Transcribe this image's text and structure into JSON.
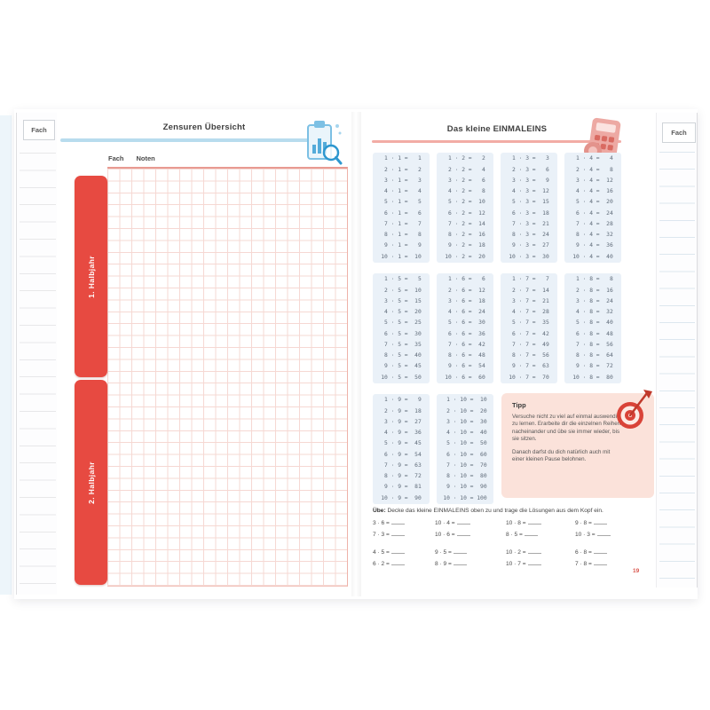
{
  "book": {
    "left_edge_tab": "Fach",
    "right_edge_tab": "Fach"
  },
  "left_page": {
    "title": "Zensuren Übersicht",
    "column_headers": {
      "fach": "Fach",
      "noten": "Noten"
    },
    "semester_tabs": [
      {
        "label": "1. Halbjahr"
      },
      {
        "label": "2. Halbjahr"
      }
    ]
  },
  "right_page": {
    "title": "Das kleine EINMALEINS",
    "page_number": "19",
    "multiplication_sign": "·",
    "tables": [
      {
        "k": 1,
        "products": [
          1,
          2,
          3,
          4,
          5,
          6,
          7,
          8,
          9,
          10
        ]
      },
      {
        "k": 2,
        "products": [
          2,
          4,
          6,
          8,
          10,
          12,
          14,
          16,
          18,
          20
        ]
      },
      {
        "k": 3,
        "products": [
          3,
          6,
          9,
          12,
          15,
          18,
          21,
          24,
          27,
          30
        ]
      },
      {
        "k": 4,
        "products": [
          4,
          8,
          12,
          16,
          20,
          24,
          28,
          32,
          36,
          40
        ]
      },
      {
        "k": 5,
        "products": [
          5,
          10,
          15,
          20,
          25,
          30,
          35,
          40,
          45,
          50
        ]
      },
      {
        "k": 6,
        "products": [
          6,
          12,
          18,
          24,
          30,
          36,
          42,
          48,
          54,
          60
        ]
      },
      {
        "k": 7,
        "products": [
          7,
          14,
          21,
          28,
          35,
          42,
          49,
          56,
          63,
          70
        ]
      },
      {
        "k": 8,
        "products": [
          8,
          16,
          24,
          32,
          40,
          48,
          56,
          64,
          72,
          80
        ]
      },
      {
        "k": 9,
        "products": [
          9,
          18,
          27,
          36,
          45,
          54,
          63,
          72,
          81,
          90
        ]
      },
      {
        "k": 10,
        "products": [
          10,
          20,
          30,
          40,
          50,
          60,
          70,
          80,
          90,
          100
        ]
      }
    ],
    "tipp": {
      "heading": "Tipp",
      "paragraph1": "Versuche nicht zu viel auf einmal auswendig zu lernen. Erarbeite dir die einzelnen Reihen nacheinander und übe sie immer wieder, bis sie sitzen.",
      "paragraph2": "Danach darfst du dich natürlich auch mit einer kleinen Pause belohnen."
    },
    "exercise": {
      "label": "Übe:",
      "instruction": "Decke das kleine EINMALEINS oben zu und trage die Lösungen aus dem Kopf ein.",
      "items": [
        "3 · 6 =",
        "10 · 4 =",
        "10 · 8 =",
        "9 · 8 =",
        "7 · 3 =",
        "10 · 6 =",
        "8 · 5 =",
        "10 · 3 =",
        "4 · 5 =",
        "9 · 5 =",
        "10 · 2 =",
        "6 · 8 =",
        "6 · 2 =",
        "8 · 9 =",
        "10 · 7 =",
        "7 · 8 ="
      ]
    }
  },
  "colors": {
    "accent_red": "#e74a41",
    "accent_blue": "#b8dcee",
    "underline_pink": "#f2aca5",
    "table_bg": "#eaf1f8",
    "tipp_bg": "#fbe2da",
    "grid_line_pink": "#f6d8d3"
  }
}
